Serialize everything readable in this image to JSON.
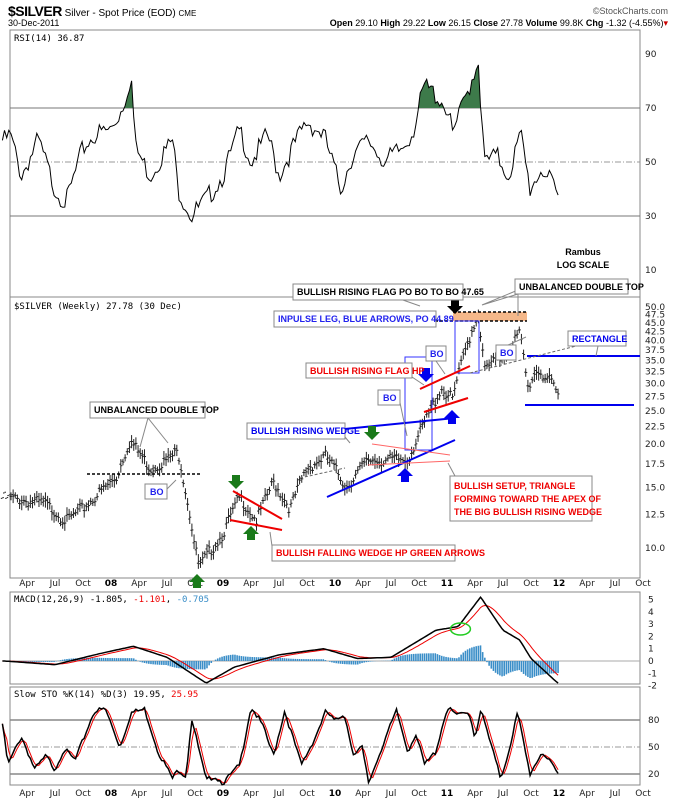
{
  "header": {
    "symbol": "$SILVER",
    "name": "Silver - Spot Price (EOD)",
    "exchange": "CME",
    "date": "30-Dec-2011",
    "watermark": "©StockCharts.com",
    "open_label": "Open",
    "open": "29.10",
    "high_label": "High",
    "high": "29.22",
    "low_label": "Low",
    "low": "26.15",
    "close_label": "Close",
    "close": "27.78",
    "volume_label": "Volume",
    "volume": "99.8K",
    "chg_label": "Chg",
    "chg": "-1.32 (-4.55%)"
  },
  "colors": {
    "up_green": "#1a7a1a",
    "blue": "#0000ee",
    "red": "#ee0000",
    "macd_hist": "#3a8ec8",
    "band": "#f5b88a"
  },
  "chart_data": [
    {
      "type": "line",
      "title": "RSI(14) 36.87",
      "yticks": [
        10,
        30,
        50,
        70,
        90
      ],
      "ylim": [
        0,
        100
      ],
      "levels": [
        70,
        50,
        30
      ],
      "x": [
        2007.05,
        2007.1,
        2007.2,
        2007.35,
        2007.5,
        2007.6,
        2007.75,
        2007.85,
        2008.0,
        2008.1,
        2008.18,
        2008.22,
        2008.35,
        2008.45,
        2008.55,
        2008.6,
        2008.72,
        2008.85,
        2009.0,
        2009.15,
        2009.25,
        2009.4,
        2009.5,
        2009.62,
        2009.75,
        2009.9,
        2010.05,
        2010.15,
        2010.3,
        2010.45,
        2010.6,
        2010.7,
        2010.8,
        2010.9,
        2011.0,
        2011.05,
        2011.15,
        2011.28,
        2011.33,
        2011.45,
        2011.55,
        2011.62,
        2011.66,
        2011.74,
        2011.85,
        2011.99
      ],
      "values": [
        58,
        60,
        45,
        58,
        40,
        35,
        55,
        60,
        62,
        70,
        82,
        55,
        45,
        52,
        58,
        40,
        30,
        36,
        45,
        62,
        50,
        60,
        45,
        55,
        65,
        60,
        40,
        52,
        58,
        50,
        55,
        62,
        78,
        75,
        70,
        60,
        72,
        88,
        50,
        52,
        45,
        55,
        60,
        40,
        48,
        37
      ]
    },
    {
      "type": "ohlc",
      "title": "$SILVER (Weekly) 27.78 (30 Dec)",
      "scale": "log",
      "yticks": [
        "10.0",
        "12.5",
        "15.0",
        "17.5",
        "20.0",
        "22.5",
        "25.0",
        "27.5",
        "30.0",
        "32.5",
        "35.0",
        "37.5",
        "40.0",
        "42.5",
        "45.0",
        "47.5",
        "50.0"
      ],
      "ylim": [
        8,
        52
      ],
      "x": [
        2007.05,
        2007.4,
        2007.6,
        2007.75,
        2007.9,
        2008.05,
        2008.17,
        2008.35,
        2008.5,
        2008.6,
        2008.66,
        2008.75,
        2008.79,
        2009.0,
        2009.15,
        2009.3,
        2009.45,
        2009.6,
        2009.75,
        2009.92,
        2010.1,
        2010.3,
        2010.5,
        2010.65,
        2010.8,
        2010.95,
        2011.05,
        2011.28,
        2011.33,
        2011.5,
        2011.65,
        2011.72,
        2011.8,
        2011.9,
        2011.99
      ],
      "close": [
        14,
        13.5,
        12,
        13,
        14.5,
        16,
        20.5,
        17,
        18,
        19,
        15,
        10,
        8.8,
        11,
        14,
        12,
        15.5,
        13,
        17,
        18.5,
        15,
        18,
        18,
        18,
        23,
        29,
        27,
        48,
        33,
        36,
        42,
        29,
        33,
        31,
        27.78
      ]
    },
    {
      "type": "line",
      "title": "MACD(12,26,9)",
      "values_text": [
        "-1.805",
        "-1.101",
        "-0.705"
      ],
      "yticks": [
        5,
        4,
        3,
        2,
        1,
        0,
        -1,
        -2
      ],
      "ylim": [
        -2.2,
        5.6
      ],
      "x": [
        2007.05,
        2007.5,
        2007.9,
        2008.2,
        2008.5,
        2008.85,
        2009.1,
        2009.5,
        2009.9,
        2010.2,
        2010.5,
        2010.9,
        2011.1,
        2011.3,
        2011.5,
        2011.65,
        2011.75,
        2011.99
      ],
      "macd": [
        0,
        -0.3,
        0.6,
        1.2,
        0.3,
        -1.8,
        -0.5,
        0.5,
        1.0,
        0.2,
        0.3,
        2.5,
        2.8,
        5.2,
        2.5,
        1.7,
        0.2,
        -1.8
      ]
    },
    {
      "type": "line",
      "title": "Slow STO %K(14) %D(3)",
      "values_text": [
        "19.95",
        "25.95"
      ],
      "yticks": [
        80,
        50,
        20
      ],
      "ylim": [
        0,
        100
      ],
      "x": [
        2007.02,
        2007.08,
        2007.2,
        2007.32,
        2007.42,
        2007.5,
        2007.58,
        2007.68,
        2007.85,
        2007.95,
        2008.08,
        2008.18,
        2008.3,
        2008.42,
        2008.55,
        2008.6,
        2008.67,
        2008.72,
        2008.85,
        2008.92,
        2009.0,
        2009.15,
        2009.25,
        2009.35,
        2009.45,
        2009.55,
        2009.7,
        2009.82,
        2009.92,
        2010.0,
        2010.08,
        2010.17,
        2010.24,
        2010.3,
        2010.45,
        2010.55,
        2010.65,
        2010.72,
        2010.8,
        2010.9,
        2011.0,
        2011.1,
        2011.2,
        2011.25,
        2011.3,
        2011.48,
        2011.55,
        2011.63,
        2011.74,
        2011.85,
        2011.99
      ],
      "k": [
        85,
        30,
        62,
        25,
        40,
        25,
        48,
        35,
        90,
        92,
        50,
        88,
        92,
        45,
        15,
        25,
        18,
        82,
        12,
        18,
        10,
        30,
        95,
        75,
        40,
        90,
        30,
        60,
        90,
        78,
        88,
        40,
        50,
        10,
        60,
        90,
        45,
        65,
        30,
        45,
        93,
        85,
        88,
        60,
        92,
        15,
        45,
        88,
        20,
        45,
        20
      ]
    }
  ],
  "x_labels": [
    "Apr",
    "Jul",
    "Oct",
    "08",
    "Apr",
    "Jul",
    "Oct",
    "09",
    "Apr",
    "Jul",
    "Oct",
    "10",
    "Apr",
    "Jul",
    "Oct",
    "11",
    "Apr",
    "Jul",
    "Oct",
    "12",
    "Apr",
    "Jul",
    "Oct"
  ],
  "annotations": {
    "rambus": "Rambus",
    "log_scale": "LOG SCALE",
    "flag_po": "BULLISH RISING FLAG PO BO TO BO 47.65",
    "double_top_right": "UNBALANCED DOUBLE TOP",
    "impulse": "INPULSE LEG, BLUE ARROWS, PO 44.89",
    "rectangle": "RECTANGLE",
    "bo": "BO",
    "flag_hp": "BULLISH RISING FLAG HP",
    "rising_wedge": "BULLISH RISING WEDGE",
    "double_top_left": "UNBALANCED DOUBLE TOP",
    "setup_1": "BULLISH SETUP, TRIANGLE",
    "setup_2": "FORMING TOWARD THE APEX OF",
    "setup_3": "THE BIG BULLISH RISING WEDGE",
    "falling_wedge": "BULLISH FALLING WEDGE HP GREEN ARROWS"
  }
}
